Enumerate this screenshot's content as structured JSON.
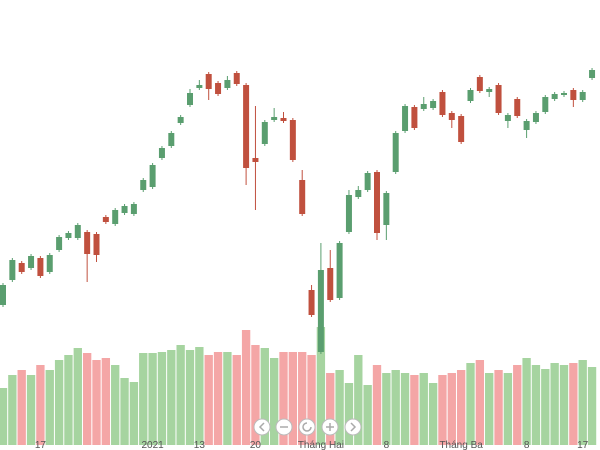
{
  "chart_data": {
    "type": "candlestick",
    "categories": [
      null,
      null,
      null,
      null,
      "17",
      null,
      null,
      null,
      null,
      null,
      null,
      null,
      null,
      null,
      null,
      null,
      "2021",
      null,
      null,
      null,
      null,
      "13",
      null,
      null,
      null,
      null,
      null,
      "20",
      null,
      null,
      null,
      null,
      null,
      null,
      "Tháng Hai",
      null,
      null,
      null,
      null,
      null,
      null,
      "8",
      null,
      null,
      null,
      null,
      null,
      null,
      null,
      "Tháng Ba",
      null,
      null,
      null,
      null,
      null,
      null,
      "8",
      null,
      null,
      null,
      null,
      null,
      "17",
      null
    ],
    "open": [
      95,
      120,
      137,
      132,
      142,
      128,
      150,
      162,
      162,
      168,
      166,
      183,
      176,
      187,
      186,
      210,
      213,
      242,
      254,
      277,
      295,
      312,
      326,
      317,
      312,
      327,
      315,
      242,
      256,
      280,
      282,
      280,
      220,
      110,
      48,
      132,
      102,
      168,
      203,
      210,
      228,
      175,
      228,
      269,
      293,
      291,
      292,
      308,
      287,
      284,
      299,
      323,
      308,
      315,
      279,
      301,
      270,
      278,
      288,
      301,
      305,
      310,
      300,
      322
    ],
    "high": [
      117,
      142,
      139,
      146,
      144,
      147,
      165,
      169,
      177,
      170,
      168,
      185,
      192,
      196,
      198,
      222,
      237,
      254,
      269,
      285,
      311,
      320,
      328,
      319,
      324,
      329,
      317,
      294,
      280,
      292,
      288,
      282,
      230,
      115,
      157,
      150,
      159,
      210,
      214,
      229,
      230,
      209,
      269,
      296,
      295,
      303,
      301,
      310,
      289,
      286,
      312,
      325,
      313,
      317,
      287,
      303,
      281,
      289,
      305,
      308,
      309,
      312,
      310,
      332
    ],
    "low": [
      93,
      118,
      126,
      130,
      122,
      126,
      148,
      160,
      160,
      118,
      138,
      176,
      174,
      185,
      184,
      208,
      211,
      240,
      252,
      275,
      293,
      310,
      300,
      304,
      310,
      314,
      215,
      190,
      254,
      278,
      277,
      238,
      184,
      83,
      46,
      98,
      100,
      166,
      201,
      208,
      160,
      160,
      226,
      267,
      270,
      289,
      290,
      283,
      272,
      256,
      297,
      307,
      303,
      285,
      272,
      282,
      262,
      276,
      286,
      299,
      303,
      293,
      298,
      320
    ],
    "close": [
      115,
      140,
      128,
      144,
      124,
      145,
      163,
      167,
      175,
      146,
      145,
      178,
      190,
      194,
      196,
      220,
      235,
      252,
      267,
      283,
      307,
      315,
      311,
      306,
      320,
      316,
      232,
      238,
      278,
      283,
      279,
      240,
      186,
      85,
      130,
      100,
      157,
      205,
      210,
      227,
      167,
      207,
      267,
      294,
      272,
      296,
      299,
      285,
      280,
      258,
      310,
      309,
      311,
      287,
      285,
      284,
      279,
      287,
      303,
      306,
      307,
      300,
      308,
      330
    ],
    "volume": [
      57,
      70,
      75,
      70,
      80,
      75,
      85,
      90,
      97,
      92,
      85,
      87,
      80,
      67,
      63,
      92,
      92,
      93,
      95,
      100,
      95,
      98,
      90,
      93,
      93,
      90,
      115,
      100,
      97,
      87,
      93,
      93,
      93,
      90,
      118,
      72,
      75,
      62,
      90,
      60,
      80,
      72,
      75,
      72,
      70,
      72,
      62,
      70,
      72,
      75,
      82,
      85,
      72,
      75,
      72,
      80,
      87,
      80,
      76,
      82,
      80,
      82,
      85,
      78
    ],
    "ylim": [
      40,
      340
    ],
    "volume_lim": [
      0,
      120
    ],
    "up_color": "#5a9e6f",
    "down_color": "#c0503e",
    "volume_up_color": "#a6d4a0",
    "volume_down_color": "#f4a6a6"
  }
}
